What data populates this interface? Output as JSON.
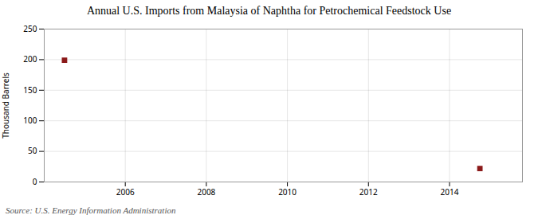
{
  "chart_data": {
    "type": "scatter",
    "title": "Annual U.S. Imports from Malaysia of Naphtha for Petrochemical Feedstock Use",
    "ylabel": "Thousand Barrels",
    "source": "Source: U.S. Energy Information Administration",
    "x": [
      2004.5,
      2014.75
    ],
    "values": [
      199,
      22
    ],
    "color": "#8b1a1a",
    "marker": "square",
    "xlim": [
      2004.0,
      2015.8
    ],
    "xticks": [
      2006,
      2008,
      2010,
      2012,
      2014
    ],
    "ylim": [
      0,
      250
    ],
    "yticks": [
      0,
      50,
      100,
      150,
      200,
      250
    ],
    "grid": true
  }
}
